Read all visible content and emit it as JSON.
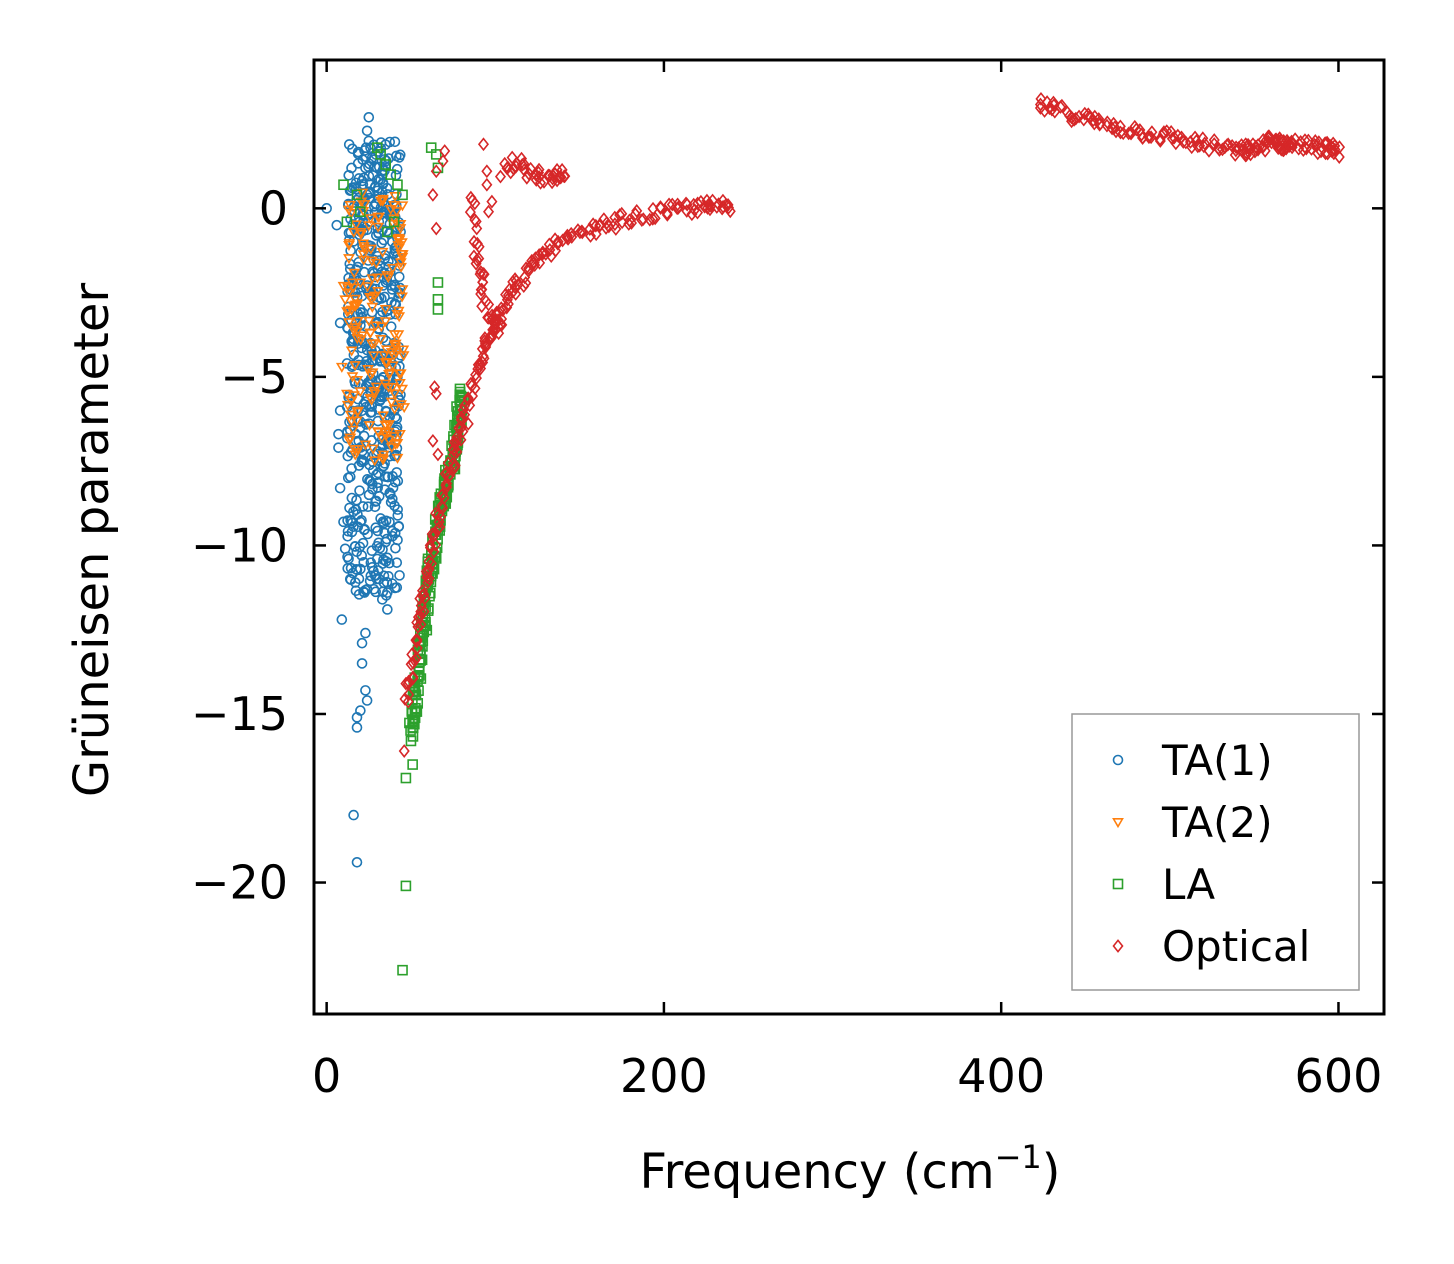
{
  "chart_data": {
    "type": "scatter",
    "title": "",
    "xlabel": "Frequency (cm",
    "xlabel_sup": "−1",
    "xlabel_close": ")",
    "ylabel": "Grüneisen parameter",
    "xlim": [
      -7.5,
      627
    ],
    "ylim": [
      -23.9,
      4.4
    ],
    "xticks": [
      0,
      200,
      400,
      600
    ],
    "xtick_labels": [
      "0",
      "200",
      "400",
      "600"
    ],
    "yticks": [
      0,
      -5,
      -10,
      -15,
      -20
    ],
    "ytick_labels": [
      "0",
      "−5",
      "−10",
      "−15",
      "−20"
    ],
    "grid": false,
    "legend_position": "bottom-right",
    "series": [
      {
        "name": "TA(1)",
        "marker": "circle",
        "color": "#1f77b4",
        "points": [
          [
            0,
            0
          ],
          [
            6,
            -0.5
          ],
          [
            8,
            -3.4
          ],
          [
            8,
            -6
          ],
          [
            7,
            -6.7
          ],
          [
            7,
            -7.1
          ],
          [
            8,
            -8.3
          ],
          [
            9,
            -12.2
          ],
          [
            10,
            -9.3
          ],
          [
            11,
            -10.1
          ],
          [
            13,
            -10.4
          ],
          [
            14,
            -11
          ],
          [
            15,
            -9.6
          ],
          [
            16,
            -18
          ],
          [
            18,
            -19.4
          ],
          [
            18,
            -15.1
          ],
          [
            18,
            -15.4
          ],
          [
            20,
            -14.9
          ],
          [
            21,
            -13.5
          ],
          [
            21,
            -12.9
          ],
          [
            23,
            -12.6
          ],
          [
            23,
            -14.3
          ],
          [
            24,
            -14.6
          ],
          [
            24,
            -11.3
          ],
          [
            22,
            -10.5
          ],
          [
            20,
            -10.7
          ],
          [
            17,
            -11.1
          ],
          [
            25,
            2.7
          ],
          [
            24,
            2.3
          ],
          [
            25,
            2.0
          ],
          [
            26,
            1.8
          ],
          [
            27,
            1.5
          ],
          [
            23,
            1.2
          ],
          [
            22,
            0.9
          ],
          [
            24,
            0.4
          ],
          [
            22,
            -0.2
          ],
          [
            20,
            -0.6
          ],
          [
            25,
            -1.1
          ],
          [
            19,
            -1.6
          ],
          [
            14,
            -1.8
          ],
          [
            17,
            -2.5
          ],
          [
            20,
            -3
          ],
          [
            23,
            -3.5
          ],
          [
            26,
            -4
          ],
          [
            15,
            -4.7
          ],
          [
            17,
            -5.2
          ],
          [
            13,
            -5.6
          ],
          [
            15,
            -6.3
          ],
          [
            19,
            -6.9
          ],
          [
            22,
            -7.5
          ],
          [
            26,
            -8.1
          ],
          [
            29,
            -8.7
          ],
          [
            32,
            -9.2
          ],
          [
            35,
            -9.9
          ],
          [
            30,
            -10.4
          ],
          [
            34,
            -10.9
          ],
          [
            36,
            -11.4
          ],
          [
            36,
            -11.9
          ],
          [
            33,
            -11.6
          ],
          [
            28,
            -11.3
          ],
          [
            38,
            -7
          ],
          [
            40,
            -6
          ],
          [
            42,
            -5
          ],
          [
            40,
            -4
          ],
          [
            37,
            -3
          ],
          [
            36,
            -2
          ],
          [
            39,
            -1
          ],
          [
            38,
            -0.2
          ],
          [
            33,
            0.5
          ],
          [
            30,
            1.2
          ]
        ],
        "cluster": {
          "x": [
            12,
            44
          ],
          "y": [
            -11.5,
            2.0
          ],
          "n": 520
        }
      },
      {
        "name": "TA(2)",
        "marker": "triangle-down",
        "color": "#ff7f0e",
        "points": [
          [
            10,
            -2.3
          ],
          [
            11,
            -2.7
          ],
          [
            13,
            -2.5
          ],
          [
            9,
            -4.7
          ],
          [
            12,
            -5.5
          ],
          [
            14,
            -6.8
          ],
          [
            16,
            -3.6
          ],
          [
            17,
            -2.9
          ],
          [
            20,
            -2.2
          ],
          [
            40,
            -0.3
          ],
          [
            42,
            -0.9
          ],
          [
            44,
            -1.6
          ],
          [
            45,
            -2.4
          ],
          [
            43,
            -3.2
          ],
          [
            41,
            -4.1
          ],
          [
            39,
            -5.3
          ],
          [
            37,
            -6.4
          ]
        ],
        "cluster": {
          "x": [
            12,
            46
          ],
          "y": [
            -7.5,
            0.5
          ],
          "n": 170
        }
      },
      {
        "name": "LA",
        "marker": "square",
        "color": "#2ca02c",
        "points": [
          [
            10,
            0.7
          ],
          [
            12,
            -0.4
          ],
          [
            18,
            0.4
          ],
          [
            20,
            -0.1
          ],
          [
            30,
            1.8
          ],
          [
            32,
            1.6
          ],
          [
            35,
            1.3
          ],
          [
            38,
            1.0
          ],
          [
            42,
            0.7
          ],
          [
            45,
            0.4
          ],
          [
            47,
            -16.9
          ],
          [
            51,
            -16.5
          ],
          [
            47,
            -20.1
          ],
          [
            45,
            -22.6
          ],
          [
            50,
            -15.8
          ],
          [
            52,
            -15.3
          ],
          [
            66,
            -2.2
          ],
          [
            66,
            -2.7
          ],
          [
            66,
            -3.0
          ],
          [
            62,
            1.8
          ],
          [
            65,
            1.6
          ],
          [
            66,
            1.2
          ],
          [
            40,
            -0.4
          ],
          [
            36,
            -0.7
          ]
        ],
        "curve": [
          [
            50,
            -15.6
          ],
          [
            53,
            -14.3
          ],
          [
            56,
            -12.9
          ],
          [
            59,
            -11.6
          ],
          [
            62,
            -10.5
          ],
          [
            66,
            -9.4
          ],
          [
            70,
            -8.4
          ],
          [
            74,
            -7.6
          ],
          [
            78,
            -6.4
          ],
          [
            81,
            -5.4
          ]
        ],
        "curve_n": 200
      },
      {
        "name": "Optical",
        "marker": "diamond",
        "color": "#d62728",
        "points": [
          [
            46,
            -16.1
          ],
          [
            47,
            -14.1
          ],
          [
            63,
            0.4
          ],
          [
            65,
            -0.6
          ],
          [
            64,
            -5.3
          ],
          [
            65,
            -5.5
          ],
          [
            63,
            -6.9
          ],
          [
            66,
            -7.3
          ],
          [
            93,
            1.9
          ],
          [
            95,
            0.7
          ],
          [
            70,
            1.7
          ],
          [
            69,
            1.4
          ],
          [
            65,
            1.1
          ],
          [
            95,
            1.1
          ],
          [
            96,
            -0.1
          ],
          [
            98,
            0.2
          ]
        ],
        "curves": [
          {
            "pts": [
              [
                48,
                -14.6
              ],
              [
                52,
                -13.2
              ],
              [
                56,
                -11.9
              ],
              [
                60,
                -10.8
              ],
              [
                65,
                -9.6
              ],
              [
                70,
                -8.3
              ],
              [
                75,
                -7.4
              ],
              [
                80,
                -6.6
              ],
              [
                86,
                -5.5
              ],
              [
                92,
                -4.4
              ],
              [
                98,
                -3.6
              ],
              [
                106,
                -2.7
              ],
              [
                114,
                -2.2
              ],
              [
                124,
                -1.6
              ],
              [
                136,
                -1.1
              ],
              [
                150,
                -0.8
              ],
              [
                165,
                -0.5
              ],
              [
                180,
                -0.3
              ],
              [
                200,
                -0.1
              ],
              [
                215,
                0
              ],
              [
                228,
                0.05
              ],
              [
                240,
                0.1
              ]
            ],
            "n": 230
          },
          {
            "pts": [
              [
                86,
                0.5
              ],
              [
                88,
                -0.8
              ],
              [
                90,
                -1.6
              ],
              [
                92,
                -2.3
              ],
              [
                95,
                -3.1
              ],
              [
                100,
                -3.6
              ],
              [
                104,
                -3.4
              ]
            ],
            "n": 40
          },
          {
            "pts": [
              [
                104,
                1.1
              ],
              [
                110,
                1.4
              ],
              [
                116,
                1.2
              ],
              [
                122,
                1.0
              ],
              [
                128,
                0.9
              ],
              [
                135,
                0.8
              ],
              [
                139,
                1.0
              ],
              [
                141,
                0.8
              ]
            ],
            "n": 40
          },
          {
            "pts": [
              [
                422,
                3.1
              ],
              [
                440,
                2.8
              ],
              [
                460,
                2.5
              ],
              [
                480,
                2.3
              ],
              [
                500,
                2.1
              ],
              [
                520,
                1.9
              ],
              [
                540,
                1.7
              ],
              [
                550,
                1.75
              ],
              [
                560,
                2.0
              ],
              [
                565,
                1.9
              ],
              [
                575,
                1.9
              ],
              [
                590,
                1.8
              ],
              [
                600,
                1.7
              ]
            ],
            "n": 170
          }
        ]
      }
    ]
  }
}
